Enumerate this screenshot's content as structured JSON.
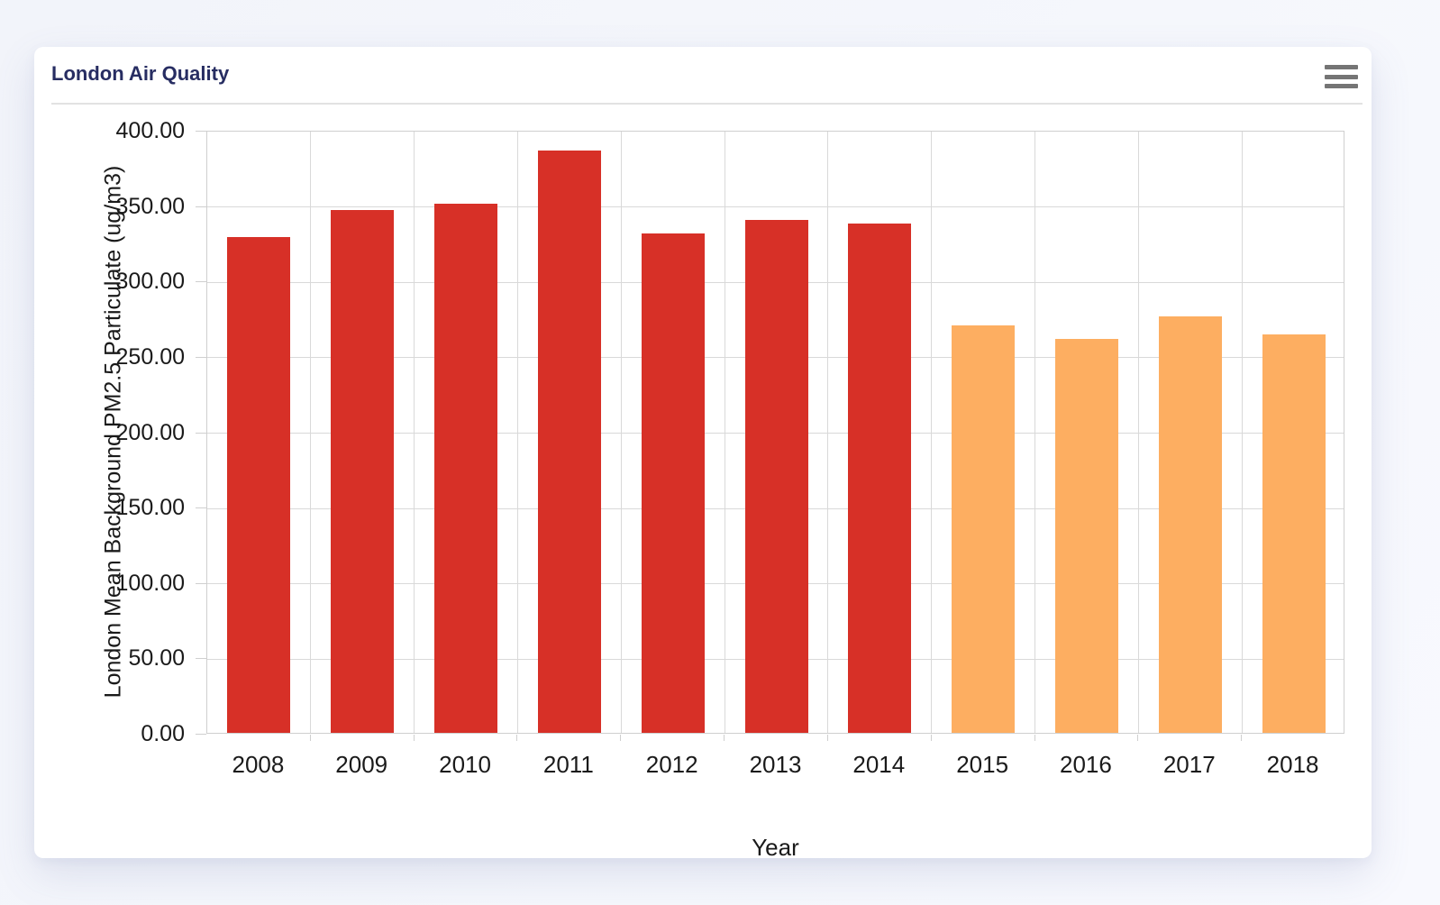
{
  "header": {
    "title": "London Air Quality",
    "menu_icon": "hamburger-menu-icon"
  },
  "chart_data": {
    "type": "bar",
    "title": "London Air Quality",
    "xlabel": "Year",
    "ylabel": "London Mean Background PM2.5 Particulate (ug/m3)",
    "categories": [
      "2008",
      "2009",
      "2010",
      "2011",
      "2012",
      "2013",
      "2014",
      "2015",
      "2016",
      "2017",
      "2018"
    ],
    "values": [
      329,
      347,
      351,
      386,
      331,
      340,
      338,
      270,
      261,
      276,
      264
    ],
    "bar_colors": [
      "#d73027",
      "#d73027",
      "#d73027",
      "#d73027",
      "#d73027",
      "#d73027",
      "#d73027",
      "#fdae61",
      "#fdae61",
      "#fdae61",
      "#fdae61"
    ],
    "ylim": [
      0,
      400
    ],
    "ytick_step": 50,
    "ytick_labels": [
      "0.00",
      "50.00",
      "100.00",
      "150.00",
      "200.00",
      "250.00",
      "300.00",
      "350.00",
      "400.00"
    ],
    "grid": true,
    "legend": "none",
    "colors": {
      "series_red": "#d73027",
      "series_orange": "#fdae61",
      "grid_line": "#d9d9d9",
      "axis_line": "#cfcfcf",
      "axis_text": "#1a1a1a",
      "title_text": "#272d62",
      "menu_icon": "#757575",
      "card_bg": "#ffffff",
      "page_bg": "#f4f6fb"
    }
  }
}
